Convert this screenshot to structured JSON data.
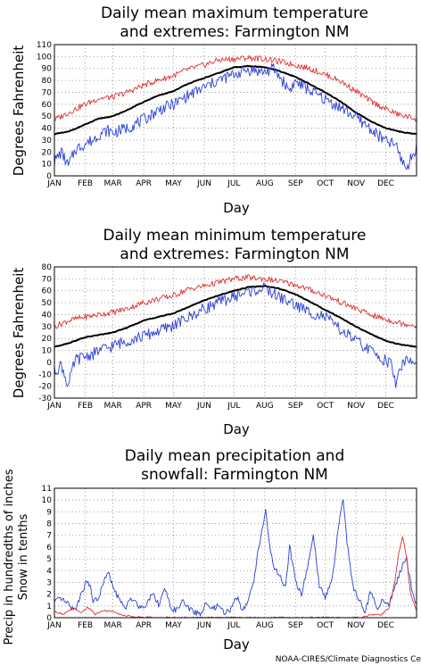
{
  "credit": "NOAA-CIRES/Climate Diagnostics Ce",
  "colors": {
    "mean": "#000000",
    "high": "#e03030",
    "low": "#2a3fd6",
    "precip": "#2a3fd6",
    "snow": "#e03030",
    "grid": "#888888"
  },
  "chart_data": [
    {
      "type": "line",
      "title_line1": "Daily mean maximum temperature",
      "title_line2": "and extremes: Farmington NM",
      "ylabel": "Degrees Fahrenheit",
      "xlabel": "Day",
      "categories": [
        "JAN",
        "FEB",
        "MAR",
        "APR",
        "MAY",
        "JUN",
        "JUL",
        "AUG",
        "SEP",
        "OCT",
        "NOV",
        "DEC"
      ],
      "xlim": [
        1,
        366
      ],
      "ylim": [
        0,
        110
      ],
      "yticks": [
        "0",
        "10",
        "20",
        "30",
        "40",
        "50",
        "60",
        "70",
        "80",
        "90",
        "100",
        "110"
      ],
      "grid": true,
      "series": [
        {
          "key": "mean",
          "x": [
            1,
            15,
            32,
            46,
            60,
            74,
            91,
            105,
            121,
            135,
            152,
            166,
            182,
            196,
            213,
            227,
            244,
            258,
            274,
            288,
            305,
            319,
            335,
            349,
            366
          ],
          "values": [
            35,
            37,
            43,
            48,
            50,
            55,
            62,
            67,
            71,
            77,
            82,
            86,
            91,
            92,
            91,
            88,
            83,
            77,
            70,
            63,
            53,
            46,
            40,
            37,
            35
          ]
        },
        {
          "key": "high",
          "x": [
            1,
            15,
            32,
            46,
            60,
            74,
            91,
            105,
            121,
            135,
            152,
            166,
            182,
            196,
            213,
            227,
            244,
            258,
            274,
            288,
            305,
            319,
            335,
            349,
            366
          ],
          "values": [
            47,
            53,
            60,
            65,
            66,
            70,
            76,
            80,
            84,
            89,
            93,
            97,
            98,
            99,
            98,
            96,
            93,
            90,
            85,
            80,
            71,
            63,
            56,
            51,
            48
          ]
        },
        {
          "key": "low",
          "x": [
            1,
            8,
            15,
            22,
            32,
            40,
            46,
            55,
            60,
            74,
            91,
            100,
            105,
            121,
            135,
            152,
            166,
            182,
            196,
            213,
            222,
            227,
            238,
            244,
            258,
            274,
            288,
            305,
            319,
            330,
            335,
            345,
            349,
            356,
            366
          ],
          "values": [
            12,
            20,
            8,
            22,
            27,
            30,
            35,
            38,
            36,
            40,
            47,
            52,
            55,
            60,
            67,
            74,
            80,
            85,
            89,
            87,
            90,
            84,
            72,
            79,
            72,
            64,
            58,
            49,
            40,
            32,
            29,
            26,
            17,
            6,
            25
          ]
        }
      ]
    },
    {
      "type": "line",
      "title_line1": "Daily mean minimum temperature",
      "title_line2": "and extremes: Farmington NM",
      "ylabel": "Degrees Fahrenheit",
      "xlabel": "Day",
      "categories": [
        "JAN",
        "FEB",
        "MAR",
        "APR",
        "MAY",
        "JUN",
        "JUL",
        "AUG",
        "SEP",
        "OCT",
        "NOV",
        "DEC"
      ],
      "xlim": [
        1,
        366
      ],
      "ylim": [
        -30,
        80
      ],
      "yticks": [
        "-30",
        "-20",
        "-10",
        "0",
        "10",
        "20",
        "30",
        "40",
        "50",
        "60",
        "70",
        "80"
      ],
      "grid": true,
      "series": [
        {
          "key": "mean",
          "x": [
            1,
            15,
            32,
            46,
            60,
            74,
            91,
            105,
            121,
            135,
            152,
            166,
            182,
            196,
            213,
            227,
            244,
            258,
            274,
            288,
            305,
            319,
            335,
            349,
            366
          ],
          "values": [
            13,
            16,
            21,
            23,
            25,
            29,
            35,
            38,
            41,
            46,
            52,
            56,
            60,
            63,
            64,
            62,
            57,
            51,
            44,
            38,
            30,
            24,
            18,
            15,
            13
          ]
        },
        {
          "key": "high",
          "x": [
            1,
            15,
            32,
            46,
            60,
            74,
            91,
            105,
            121,
            135,
            152,
            166,
            182,
            196,
            213,
            227,
            244,
            258,
            274,
            288,
            305,
            319,
            335,
            349,
            366
          ],
          "values": [
            30,
            35,
            38,
            40,
            42,
            45,
            50,
            53,
            56,
            61,
            64,
            67,
            70,
            71,
            70,
            68,
            65,
            61,
            56,
            51,
            45,
            40,
            36,
            33,
            31
          ]
        },
        {
          "key": "low",
          "x": [
            1,
            8,
            15,
            22,
            32,
            40,
            46,
            55,
            60,
            74,
            91,
            105,
            121,
            135,
            152,
            166,
            182,
            196,
            213,
            227,
            244,
            258,
            274,
            288,
            305,
            319,
            330,
            340,
            345,
            349,
            356,
            366
          ],
          "values": [
            -8,
            -2,
            -20,
            2,
            5,
            7,
            10,
            12,
            14,
            18,
            22,
            26,
            31,
            37,
            45,
            50,
            55,
            59,
            62,
            55,
            48,
            42,
            38,
            28,
            18,
            10,
            4,
            -1,
            -18,
            -5,
            3,
            -3
          ]
        }
      ]
    },
    {
      "type": "line",
      "title_line1": "Daily mean precipitation and",
      "title_line2": "snowfall: Farmington NM",
      "ylabel_line1": "Precip in hundredths of inches",
      "ylabel_line2": "Snow in tenths",
      "xlabel": "Day",
      "categories": [
        "JAN",
        "FEB",
        "MAR",
        "APR",
        "MAY",
        "JUN",
        "JUL",
        "AUG",
        "SEP",
        "OCT",
        "NOV",
        "DEC"
      ],
      "xlim": [
        1,
        366
      ],
      "ylim": [
        0,
        11
      ],
      "yticks": [
        "0",
        "1",
        "2",
        "3",
        "4",
        "5",
        "6",
        "7",
        "8",
        "9",
        "10",
        "11"
      ],
      "grid": true,
      "series": [
        {
          "key": "precip",
          "x": [
            1,
            8,
            15,
            22,
            28,
            35,
            40,
            45,
            50,
            55,
            60,
            66,
            72,
            80,
            88,
            95,
            100,
            106,
            112,
            118,
            124,
            130,
            136,
            142,
            148,
            154,
            160,
            166,
            172,
            178,
            184,
            190,
            196,
            202,
            206,
            210,
            214,
            218,
            222,
            228,
            234,
            238,
            244,
            250,
            256,
            262,
            268,
            274,
            280,
            284,
            288,
            292,
            296,
            302,
            308,
            314,
            320,
            326,
            332,
            338,
            344,
            350,
            356,
            362,
            366
          ],
          "values": [
            1.3,
            1.6,
            1.1,
            0.6,
            2.1,
            3.3,
            1.4,
            1.6,
            2.8,
            3.9,
            2.6,
            1.6,
            0.8,
            1.7,
            0.8,
            1.3,
            2.2,
            1.1,
            2.5,
            0.9,
            0.6,
            1.4,
            0.8,
            0.5,
            0.3,
            1.2,
            0.7,
            1.0,
            0.4,
            0.6,
            1.9,
            0.8,
            1.2,
            3.2,
            5.5,
            7.4,
            9.1,
            6.1,
            4.2,
            3.6,
            2.5,
            6.1,
            3.1,
            1.9,
            4.2,
            7.1,
            2.6,
            1.8,
            3.0,
            5.2,
            8.2,
            10.2,
            6.4,
            2.6,
            1.6,
            0.5,
            2.3,
            0.8,
            1.5,
            1.2,
            2.4,
            4.1,
            5.0,
            2.0,
            1.2
          ]
        },
        {
          "key": "snow",
          "x": [
            1,
            10,
            20,
            28,
            35,
            42,
            50,
            60,
            70,
            80,
            100,
            140,
            200,
            280,
            310,
            320,
            330,
            338,
            344,
            348,
            352,
            356,
            360,
            366
          ],
          "values": [
            0.5,
            0.3,
            0.8,
            0.4,
            0.9,
            0.3,
            0.6,
            0.5,
            0.2,
            0.1,
            0.0,
            0.0,
            0.0,
            0.0,
            0.0,
            0.3,
            0.2,
            0.8,
            3.0,
            5.5,
            6.9,
            5.0,
            2.0,
            0.6
          ]
        }
      ]
    }
  ]
}
